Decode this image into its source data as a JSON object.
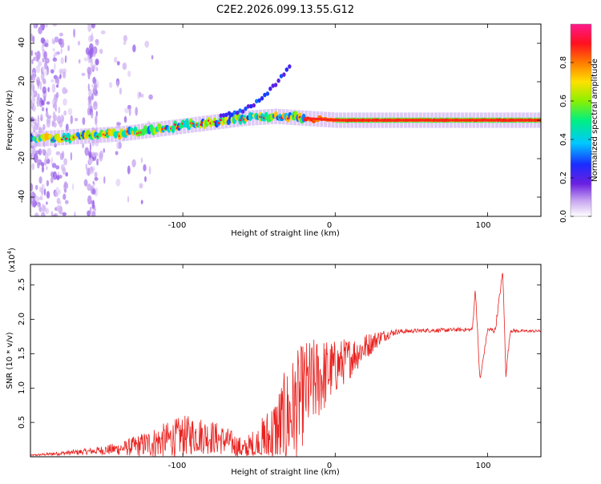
{
  "figure": {
    "title": "C2E2.2026.099.13.55.G12"
  },
  "chart_data": [
    {
      "type": "heatmap",
      "title": "C2E2.2026.099.13.55.G12",
      "xlabel": "Height of straight line (km)",
      "ylabel": "Frequency (Hz)",
      "xlim": [
        -200,
        135
      ],
      "ylim": [
        -50,
        50
      ],
      "xticks": [
        -100,
        0,
        100
      ],
      "xtick_labels": [
        "-100",
        "0",
        "100"
      ],
      "yticks": [
        -40,
        -20,
        0,
        20,
        40
      ],
      "ytick_labels": [
        "-40",
        "-20",
        "0",
        "20",
        "40"
      ],
      "colorbar": {
        "label": "Normalized spectral amplitude",
        "range": [
          0,
          1
        ],
        "ticks": [
          0.0,
          0.2,
          0.4,
          0.6,
          0.8
        ],
        "tick_labels": [
          "0.0",
          "0.2",
          "0.4",
          "0.6",
          "0.8"
        ],
        "colors": [
          "#ffffff",
          "#c8a6f0",
          "#6a1fe0",
          "#1a2cff",
          "#00c8ff",
          "#00f080",
          "#8cf000",
          "#ffe000",
          "#ff7a00",
          "#ff1020",
          "#ff1a8c"
        ]
      },
      "ridge": {
        "description": "dominant frequency vs height",
        "x": [
          -200,
          -180,
          -160,
          -140,
          -120,
          -100,
          -80,
          -60,
          -40,
          -20,
          0,
          20,
          60,
          100,
          135
        ],
        "y": [
          -10,
          -9,
          -8,
          -7,
          -5,
          -3,
          -1,
          1,
          2,
          1,
          0,
          0,
          0,
          0,
          0
        ]
      },
      "branch": {
        "description": "upward frequency branch",
        "x": [
          -75,
          -60,
          -50,
          -40,
          -30
        ],
        "y": [
          2,
          5,
          10,
          18,
          28
        ]
      }
    },
    {
      "type": "line",
      "xlabel": "Height of straight line (km)",
      "ylabel": "SNR (10 * v/v)",
      "multiplier_label": "(x10",
      "multiplier_exp": "4",
      "multiplier_close": ")",
      "xlim": [
        -200,
        135
      ],
      "ylim": [
        0,
        2.8
      ],
      "xticks": [
        -100,
        0,
        100
      ],
      "xtick_labels": [
        "-100",
        "0",
        "100"
      ],
      "yticks": [
        0.5,
        1.0,
        1.5,
        2.0,
        2.5
      ],
      "ytick_labels": [
        "0.5",
        "1.0",
        "1.5",
        "2.0",
        "2.5"
      ],
      "series": [
        {
          "name": "SNR",
          "color": "#e8211e",
          "x": [
            -200,
            -180,
            -160,
            -140,
            -120,
            -100,
            -90,
            -80,
            -70,
            -60,
            -50,
            -40,
            -30,
            -20,
            -10,
            0,
            10,
            20,
            30,
            40,
            50,
            60,
            70,
            80,
            90,
            92,
            95,
            100,
            105,
            110,
            112,
            115,
            120,
            135
          ],
          "y": [
            0.02,
            0.05,
            0.08,
            0.12,
            0.2,
            0.3,
            0.32,
            0.28,
            0.22,
            0.1,
            0.15,
            0.3,
            0.6,
            0.95,
            1.15,
            1.3,
            1.45,
            1.6,
            1.75,
            1.82,
            1.83,
            1.84,
            1.84,
            1.85,
            1.85,
            2.45,
            1.1,
            1.85,
            1.84,
            2.7,
            1.2,
            1.84,
            1.83,
            1.83
          ],
          "noise_amplitude": [
            0.01,
            0.03,
            0.05,
            0.1,
            0.22,
            0.3,
            0.28,
            0.25,
            0.2,
            0.15,
            0.35,
            0.6,
            0.8,
            0.75,
            0.6,
            0.4,
            0.3,
            0.2,
            0.1,
            0.04,
            0.03,
            0.03,
            0.03,
            0.03,
            0.03,
            0.05,
            0.05,
            0.03,
            0.05,
            0.05,
            0.05,
            0.03,
            0.02,
            0.02
          ]
        }
      ]
    }
  ]
}
